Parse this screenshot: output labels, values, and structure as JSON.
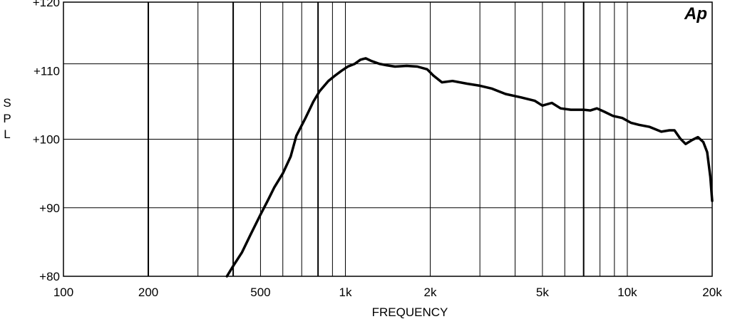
{
  "chart_data": {
    "type": "line",
    "xlabel": "FREQUENCY",
    "ylabel": "SPL",
    "x_scale": "log",
    "xlim": [
      100,
      20000
    ],
    "ylim": [
      80,
      120
    ],
    "grid": true,
    "brand_logo": "Ap",
    "x_ticks": [
      {
        "value": 100,
        "label": "100"
      },
      {
        "value": 200,
        "label": "200"
      },
      {
        "value": 500,
        "label": "500"
      },
      {
        "value": 1000,
        "label": "1k"
      },
      {
        "value": 2000,
        "label": "2k"
      },
      {
        "value": 5000,
        "label": "5k"
      },
      {
        "value": 10000,
        "label": "10k"
      },
      {
        "value": 20000,
        "label": "20k"
      }
    ],
    "y_ticks": [
      {
        "value": 80,
        "label": "+80"
      },
      {
        "value": 90,
        "label": "+90"
      },
      {
        "value": 100,
        "label": "+100"
      },
      {
        "value": 110,
        "label": "+110"
      },
      {
        "value": 120,
        "label": "+120"
      }
    ],
    "x_grid": [
      200,
      300,
      400,
      500,
      600,
      700,
      800,
      900,
      1000,
      2000,
      3000,
      4000,
      5000,
      6000,
      7000,
      8000,
      9000,
      10000
    ],
    "x_grid_major": [
      200,
      400,
      800,
      7000
    ],
    "y_grid": [
      90,
      100,
      111
    ],
    "series": [
      {
        "points": [
          [
            380,
            80
          ],
          [
            400,
            81.5
          ],
          [
            430,
            83.5
          ],
          [
            460,
            86
          ],
          [
            500,
            89
          ],
          [
            530,
            91
          ],
          [
            560,
            93
          ],
          [
            600,
            95
          ],
          [
            640,
            97.5
          ],
          [
            670,
            100.5
          ],
          [
            720,
            103
          ],
          [
            770,
            105.5
          ],
          [
            810,
            107
          ],
          [
            870,
            108.5
          ],
          [
            920,
            109.3
          ],
          [
            970,
            110
          ],
          [
            1020,
            110.6
          ],
          [
            1080,
            111
          ],
          [
            1130,
            111.6
          ],
          [
            1180,
            111.8
          ],
          [
            1240,
            111.4
          ],
          [
            1320,
            111
          ],
          [
            1400,
            110.8
          ],
          [
            1500,
            110.6
          ],
          [
            1650,
            110.7
          ],
          [
            1800,
            110.6
          ],
          [
            1950,
            110.2
          ],
          [
            2050,
            109.3
          ],
          [
            2200,
            108.3
          ],
          [
            2400,
            108.5
          ],
          [
            2700,
            108.1
          ],
          [
            3000,
            107.8
          ],
          [
            3300,
            107.4
          ],
          [
            3700,
            106.6
          ],
          [
            4200,
            106.1
          ],
          [
            4700,
            105.6
          ],
          [
            5000,
            104.9
          ],
          [
            5400,
            105.3
          ],
          [
            5800,
            104.5
          ],
          [
            6300,
            104.3
          ],
          [
            7000,
            104.3
          ],
          [
            7400,
            104.2
          ],
          [
            7800,
            104.5
          ],
          [
            8300,
            104
          ],
          [
            8900,
            103.4
          ],
          [
            9600,
            103.1
          ],
          [
            10300,
            102.4
          ],
          [
            11000,
            102.1
          ],
          [
            12000,
            101.8
          ],
          [
            13200,
            101.1
          ],
          [
            14100,
            101.3
          ],
          [
            14700,
            101.3
          ],
          [
            15400,
            100.1
          ],
          [
            16100,
            99.3
          ],
          [
            17000,
            99.9
          ],
          [
            17800,
            100.3
          ],
          [
            18600,
            99.6
          ],
          [
            19200,
            98.1
          ],
          [
            19700,
            94.5
          ],
          [
            20000,
            91
          ]
        ]
      }
    ]
  }
}
